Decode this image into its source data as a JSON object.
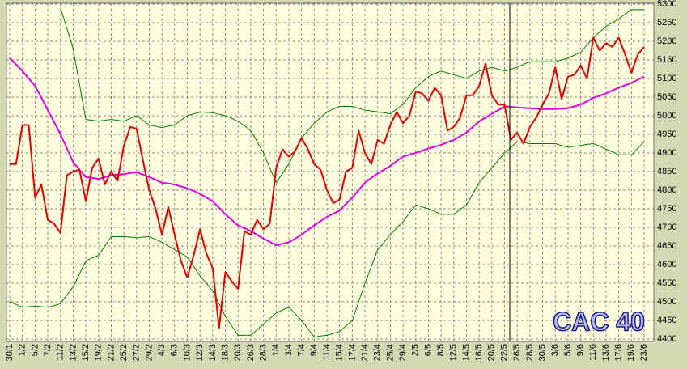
{
  "chart_data": {
    "type": "line",
    "title": "CAC 40",
    "categories": [
      "30/1",
      null,
      "1/2",
      null,
      "5/2",
      null,
      "7/2",
      null,
      "11/2",
      null,
      "13/2",
      null,
      "15/2",
      null,
      "19/2",
      null,
      "21/2",
      null,
      "25/2",
      null,
      "27/2",
      null,
      "29/2",
      null,
      "4/3",
      null,
      "6/3",
      null,
      "10/3",
      null,
      "12/3",
      null,
      "14/3",
      null,
      "18/3",
      null,
      "20/3",
      null,
      "26/3",
      null,
      "28/3",
      null,
      "1/4",
      null,
      "3/4",
      null,
      "7/4",
      null,
      "9/4",
      null,
      "11/4",
      null,
      "15/4",
      null,
      "17/4",
      null,
      "21/4",
      null,
      "23/4",
      null,
      "25/4",
      null,
      "29/4",
      null,
      "2/5",
      null,
      "6/5",
      null,
      "8/5",
      null,
      "12/5",
      null,
      "14/5",
      null,
      "16/5",
      null,
      "20/5",
      null,
      "22/5",
      null,
      "26/5",
      null,
      "28/5",
      null,
      "30/5",
      null,
      "3/6",
      null,
      "5/6",
      null,
      "9/6",
      null,
      "11/6",
      null,
      "13/6",
      null,
      "17/6",
      null,
      "19/6",
      null,
      "23/6"
    ],
    "series": [
      {
        "color": "#008000",
        "width": 1,
        "values": [
          null,
          null,
          null,
          null,
          null,
          null,
          null,
          null,
          5290,
          5235,
          5180,
          5085,
          4990,
          4988,
          4985,
          4988,
          4990,
          4988,
          4985,
          4993,
          5000,
          4988,
          4975,
          4972,
          4968,
          4972,
          4975,
          4988,
          5000,
          5005,
          5010,
          5009,
          5008,
          5004,
          5000,
          4993,
          4985,
          4973,
          4960,
          4930,
          4900,
          4860,
          4820,
          4845,
          4870,
          4905,
          4940,
          4960,
          4980,
          4995,
          5010,
          5018,
          5025,
          5025,
          5025,
          5020,
          5015,
          5013,
          5010,
          5008,
          5005,
          5018,
          5030,
          5053,
          5075,
          5090,
          5105,
          5113,
          5120,
          5115,
          5110,
          5105,
          5100,
          5110,
          5120,
          5125,
          5130,
          5125,
          5120,
          5125,
          5130,
          5138,
          5145,
          5145,
          5145,
          5145,
          5145,
          5150,
          5155,
          5163,
          5170,
          5190,
          5210,
          5225,
          5240,
          5250,
          5260,
          5273,
          5285,
          5285,
          5285
        ]
      },
      {
        "color": "#008000",
        "width": 1,
        "values": [
          4500,
          4493,
          4485,
          4487,
          4488,
          4487,
          4485,
          4490,
          4495,
          4518,
          4540,
          4575,
          4610,
          4618,
          4625,
          4650,
          4675,
          4675,
          4675,
          4674,
          4672,
          4674,
          4675,
          4668,
          4660,
          4650,
          4640,
          4630,
          4620,
          4595,
          4570,
          4550,
          4530,
          4495,
          4460,
          4435,
          4410,
          4410,
          4410,
          4425,
          4440,
          4455,
          4470,
          4478,
          4485,
          4468,
          4450,
          4428,
          4405,
          4408,
          4410,
          4415,
          4420,
          4435,
          4450,
          4500,
          4550,
          4595,
          4640,
          4660,
          4680,
          4698,
          4715,
          4738,
          4760,
          4755,
          4750,
          4743,
          4735,
          4735,
          4735,
          4748,
          4760,
          4790,
          4820,
          4840,
          4860,
          4880,
          4900,
          4915,
          4930,
          4928,
          4925,
          4925,
          4925,
          4925,
          4925,
          4920,
          4915,
          4918,
          4920,
          4923,
          4925,
          4918,
          4910,
          4903,
          4895,
          4895,
          4895,
          4913,
          4930
        ]
      },
      {
        "color": "#e000e0",
        "width": 2,
        "values": [
          5155,
          5138,
          5120,
          5100,
          5080,
          5048,
          5015,
          4983,
          4950,
          4913,
          4875,
          4855,
          4835,
          4833,
          4830,
          4835,
          4840,
          4842,
          4843,
          4846,
          4848,
          4842,
          4835,
          4828,
          4820,
          4818,
          4815,
          4810,
          4805,
          4798,
          4790,
          4780,
          4770,
          4753,
          4735,
          4720,
          4705,
          4698,
          4690,
          4680,
          4670,
          4661,
          4652,
          4656,
          4660,
          4670,
          4680,
          4693,
          4705,
          4717,
          4728,
          4737,
          4745,
          4763,
          4780,
          4800,
          4820,
          4833,
          4845,
          4855,
          4865,
          4878,
          4890,
          4895,
          4900,
          4906,
          4912,
          4917,
          4922,
          4929,
          4935,
          4945,
          4955,
          4970,
          4985,
          4995,
          5005,
          5015,
          5025,
          5024,
          5022,
          5021,
          5020,
          5019,
          5018,
          5018,
          5018,
          5019,
          5020,
          5025,
          5030,
          5039,
          5048,
          5054,
          5060,
          5068,
          5075,
          5082,
          5088,
          5097,
          5105
        ]
      },
      {
        "color": "#e00000",
        "width": 2,
        "values": [
          4870,
          4870,
          4975,
          4975,
          4780,
          4815,
          4720,
          4710,
          4685,
          4840,
          4850,
          4855,
          4770,
          4860,
          4885,
          4815,
          4850,
          4825,
          4920,
          4970,
          4965,
          4880,
          4800,
          4750,
          4680,
          4755,
          4680,
          4610,
          4565,
          4625,
          4695,
          4630,
          4590,
          4430,
          4580,
          4555,
          4535,
          4690,
          4680,
          4720,
          4695,
          4710,
          4860,
          4910,
          4890,
          4905,
          4940,
          4910,
          4870,
          4855,
          4800,
          4765,
          4775,
          4850,
          4860,
          4960,
          4900,
          4870,
          4935,
          4925,
          4975,
          5010,
          4980,
          5000,
          5065,
          5060,
          5040,
          5075,
          5055,
          4960,
          4970,
          4995,
          5055,
          5055,
          5080,
          5140,
          5055,
          5030,
          5030,
          4935,
          4955,
          4925,
          4970,
          4995,
          5030,
          5060,
          5130,
          5045,
          5105,
          5110,
          5135,
          5100,
          5210,
          5175,
          5195,
          5185,
          5210,
          5165,
          5115,
          5165,
          5185
        ]
      }
    ],
    "ylim": [
      4400,
      5300
    ],
    "yticks": [
      4400,
      4450,
      4500,
      4550,
      4600,
      4650,
      4700,
      4750,
      4800,
      4850,
      4900,
      4950,
      5000,
      5050,
      5100,
      5150,
      5200,
      5250,
      5300
    ],
    "grid": true,
    "background": "#ffffe0"
  }
}
